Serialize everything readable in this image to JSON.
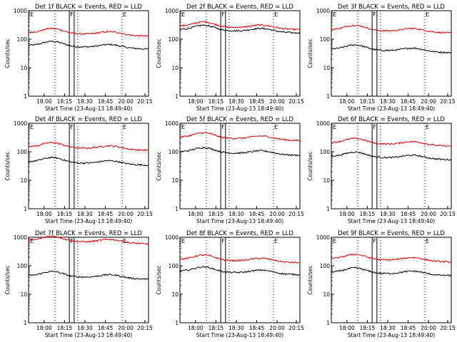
{
  "figure": {
    "colors": {
      "events": "#000000",
      "lld": "#e00000",
      "axes": "#000000",
      "background": "#ffffff"
    }
  },
  "chart_data": [
    {
      "type": "line",
      "title": "Det 1f BLACK = Events, RED = LLD",
      "xlabel": "Start Time (23-Aug-13 18:49:40)",
      "ylabel": "Counts/sec",
      "ylog": true,
      "ylim": [
        1,
        1000
      ],
      "yticks": [
        "1",
        "10",
        "100",
        "1000"
      ],
      "xlim": [
        "17:49",
        "20:29"
      ],
      "xticks": [
        "18:00",
        "18:15",
        "18:30",
        "18:45",
        "20:00",
        "20:15"
      ],
      "markers": [
        "E",
        "F",
        "E"
      ],
      "series": [
        {
          "name": "Events",
          "color": "#000000",
          "baseline": 60
        },
        {
          "name": "LLD",
          "color": "#e00000",
          "baseline": 170
        }
      ]
    },
    {
      "type": "line",
      "title": "Det 2f BLACK = Events, RED = LLD",
      "xlabel": "Start Time (23-Aug-13 18:49:40)",
      "ylabel": "Counts/sec",
      "ylog": true,
      "ylim": [
        1,
        1000
      ],
      "yticks": [
        "1",
        "10",
        "100",
        "1000"
      ],
      "xlim": [
        "17:49",
        "20:29"
      ],
      "xticks": [
        "18:00",
        "18:15",
        "18:30",
        "18:45",
        "20:00",
        "20:15"
      ],
      "markers": [
        "E",
        "F",
        "E"
      ],
      "series": [
        {
          "name": "Events",
          "color": "#000000",
          "baseline": 220
        },
        {
          "name": "LLD",
          "color": "#e00000",
          "baseline": 290
        }
      ]
    },
    {
      "type": "line",
      "title": "Det 3f BLACK = Events, RED = LLD",
      "xlabel": "Start Time (23-Aug-13 18:49:40)",
      "ylabel": "Counts/sec",
      "ylog": true,
      "ylim": [
        1,
        1000
      ],
      "yticks": [
        "1",
        "10",
        "100",
        "1000"
      ],
      "xlim": [
        "17:49",
        "20:29"
      ],
      "xticks": [
        "18:00",
        "18:15",
        "18:30",
        "18:45",
        "20:00",
        "20:15"
      ],
      "markers": [
        "E",
        "F",
        "E"
      ],
      "series": [
        {
          "name": "Events",
          "color": "#000000",
          "baseline": 45
        },
        {
          "name": "LLD",
          "color": "#e00000",
          "baseline": 220
        }
      ]
    },
    {
      "type": "line",
      "title": "Det 4f BLACK = Events, RED = LLD",
      "xlabel": "Start Time (23-Aug-13 18:49:40)",
      "ylabel": "Counts/sec",
      "ylog": true,
      "ylim": [
        1,
        1000
      ],
      "yticks": [
        "1",
        "10",
        "100",
        "1000"
      ],
      "xlim": [
        "17:49",
        "20:29"
      ],
      "xticks": [
        "18:00",
        "18:15",
        "18:30",
        "18:45",
        "20:00",
        "20:15"
      ],
      "markers": [
        "E",
        "F",
        "E"
      ],
      "series": [
        {
          "name": "Events",
          "color": "#000000",
          "baseline": 45
        },
        {
          "name": "LLD",
          "color": "#e00000",
          "baseline": 150
        }
      ]
    },
    {
      "type": "line",
      "title": "Det 5f BLACK = Events, RED = LLD",
      "xlabel": "Start Time (23-Aug-13 18:49:40)",
      "ylabel": "Counts/sec",
      "ylog": true,
      "ylim": [
        1,
        1000
      ],
      "yticks": [
        "1",
        "10",
        "100",
        "1000"
      ],
      "xlim": [
        "17:49",
        "20:29"
      ],
      "xticks": [
        "18:00",
        "18:15",
        "18:30",
        "18:45",
        "20:00",
        "20:15"
      ],
      "markers": [
        "E",
        "F",
        "E"
      ],
      "series": [
        {
          "name": "Events",
          "color": "#000000",
          "baseline": 100
        },
        {
          "name": "LLD",
          "color": "#e00000",
          "baseline": 330
        }
      ]
    },
    {
      "type": "line",
      "title": "Det 6f BLACK = Events, RED = LLD",
      "xlabel": "Start Time (23-Aug-13 18:49:40)",
      "ylabel": "Counts/sec",
      "ylog": true,
      "ylim": [
        1,
        1000
      ],
      "yticks": [
        "1",
        "10",
        "100",
        "1000"
      ],
      "xlim": [
        "17:49",
        "20:29"
      ],
      "xticks": [
        "18:00",
        "18:15",
        "18:30",
        "18:45",
        "20:00",
        "20:15"
      ],
      "markers": [
        "E",
        "F",
        "E"
      ],
      "series": [
        {
          "name": "Events",
          "color": "#000000",
          "baseline": 70
        },
        {
          "name": "LLD",
          "color": "#e00000",
          "baseline": 210
        }
      ]
    },
    {
      "type": "line",
      "title": "Det 7f BLACK = Events, RED = LLD",
      "xlabel": "Start Time (23-Aug-13 18:49:40)",
      "ylabel": "Counts/sec",
      "ylog": true,
      "ylim": [
        1,
        1000
      ],
      "yticks": [
        "1",
        "10",
        "100",
        "1000"
      ],
      "xlim": [
        "17:49",
        "20:29"
      ],
      "xticks": [
        "18:00",
        "18:15",
        "18:30",
        "18:45",
        "20:00",
        "20:15"
      ],
      "markers": [
        "E",
        "F",
        "E"
      ],
      "series": [
        {
          "name": "Events",
          "color": "#000000",
          "baseline": 45
        },
        {
          "name": "LLD",
          "color": "#e00000",
          "baseline": 780
        }
      ]
    },
    {
      "type": "line",
      "title": "Det 8f BLACK = Events, RED = LLD",
      "xlabel": "Start Time (23-Aug-13 18:49:40)",
      "ylabel": "Counts/sec",
      "ylog": true,
      "ylim": [
        1,
        1000
      ],
      "yticks": [
        "1",
        "10",
        "100",
        "1000"
      ],
      "xlim": [
        "17:49",
        "20:29"
      ],
      "xticks": [
        "18:00",
        "18:15",
        "18:30",
        "18:45",
        "20:00",
        "20:15"
      ],
      "markers": [
        "E",
        "F",
        "E"
      ],
      "series": [
        {
          "name": "Events",
          "color": "#000000",
          "baseline": 65
        },
        {
          "name": "LLD",
          "color": "#e00000",
          "baseline": 170
        }
      ]
    },
    {
      "type": "line",
      "title": "Det 9f BLACK = Events, RED = LLD",
      "xlabel": "Start Time (23-Aug-13 18:49:40)",
      "ylabel": "Counts/sec",
      "ylog": true,
      "ylim": [
        1,
        1000
      ],
      "yticks": [
        "1",
        "10",
        "100",
        "1000"
      ],
      "xlim": [
        "17:49",
        "20:29"
      ],
      "xticks": [
        "18:00",
        "18:15",
        "18:30",
        "18:45",
        "20:00",
        "20:15"
      ],
      "markers": [
        "E",
        "F",
        "E"
      ],
      "series": [
        {
          "name": "Events",
          "color": "#000000",
          "baseline": 60
        },
        {
          "name": "LLD",
          "color": "#e00000",
          "baseline": 180
        }
      ]
    }
  ]
}
